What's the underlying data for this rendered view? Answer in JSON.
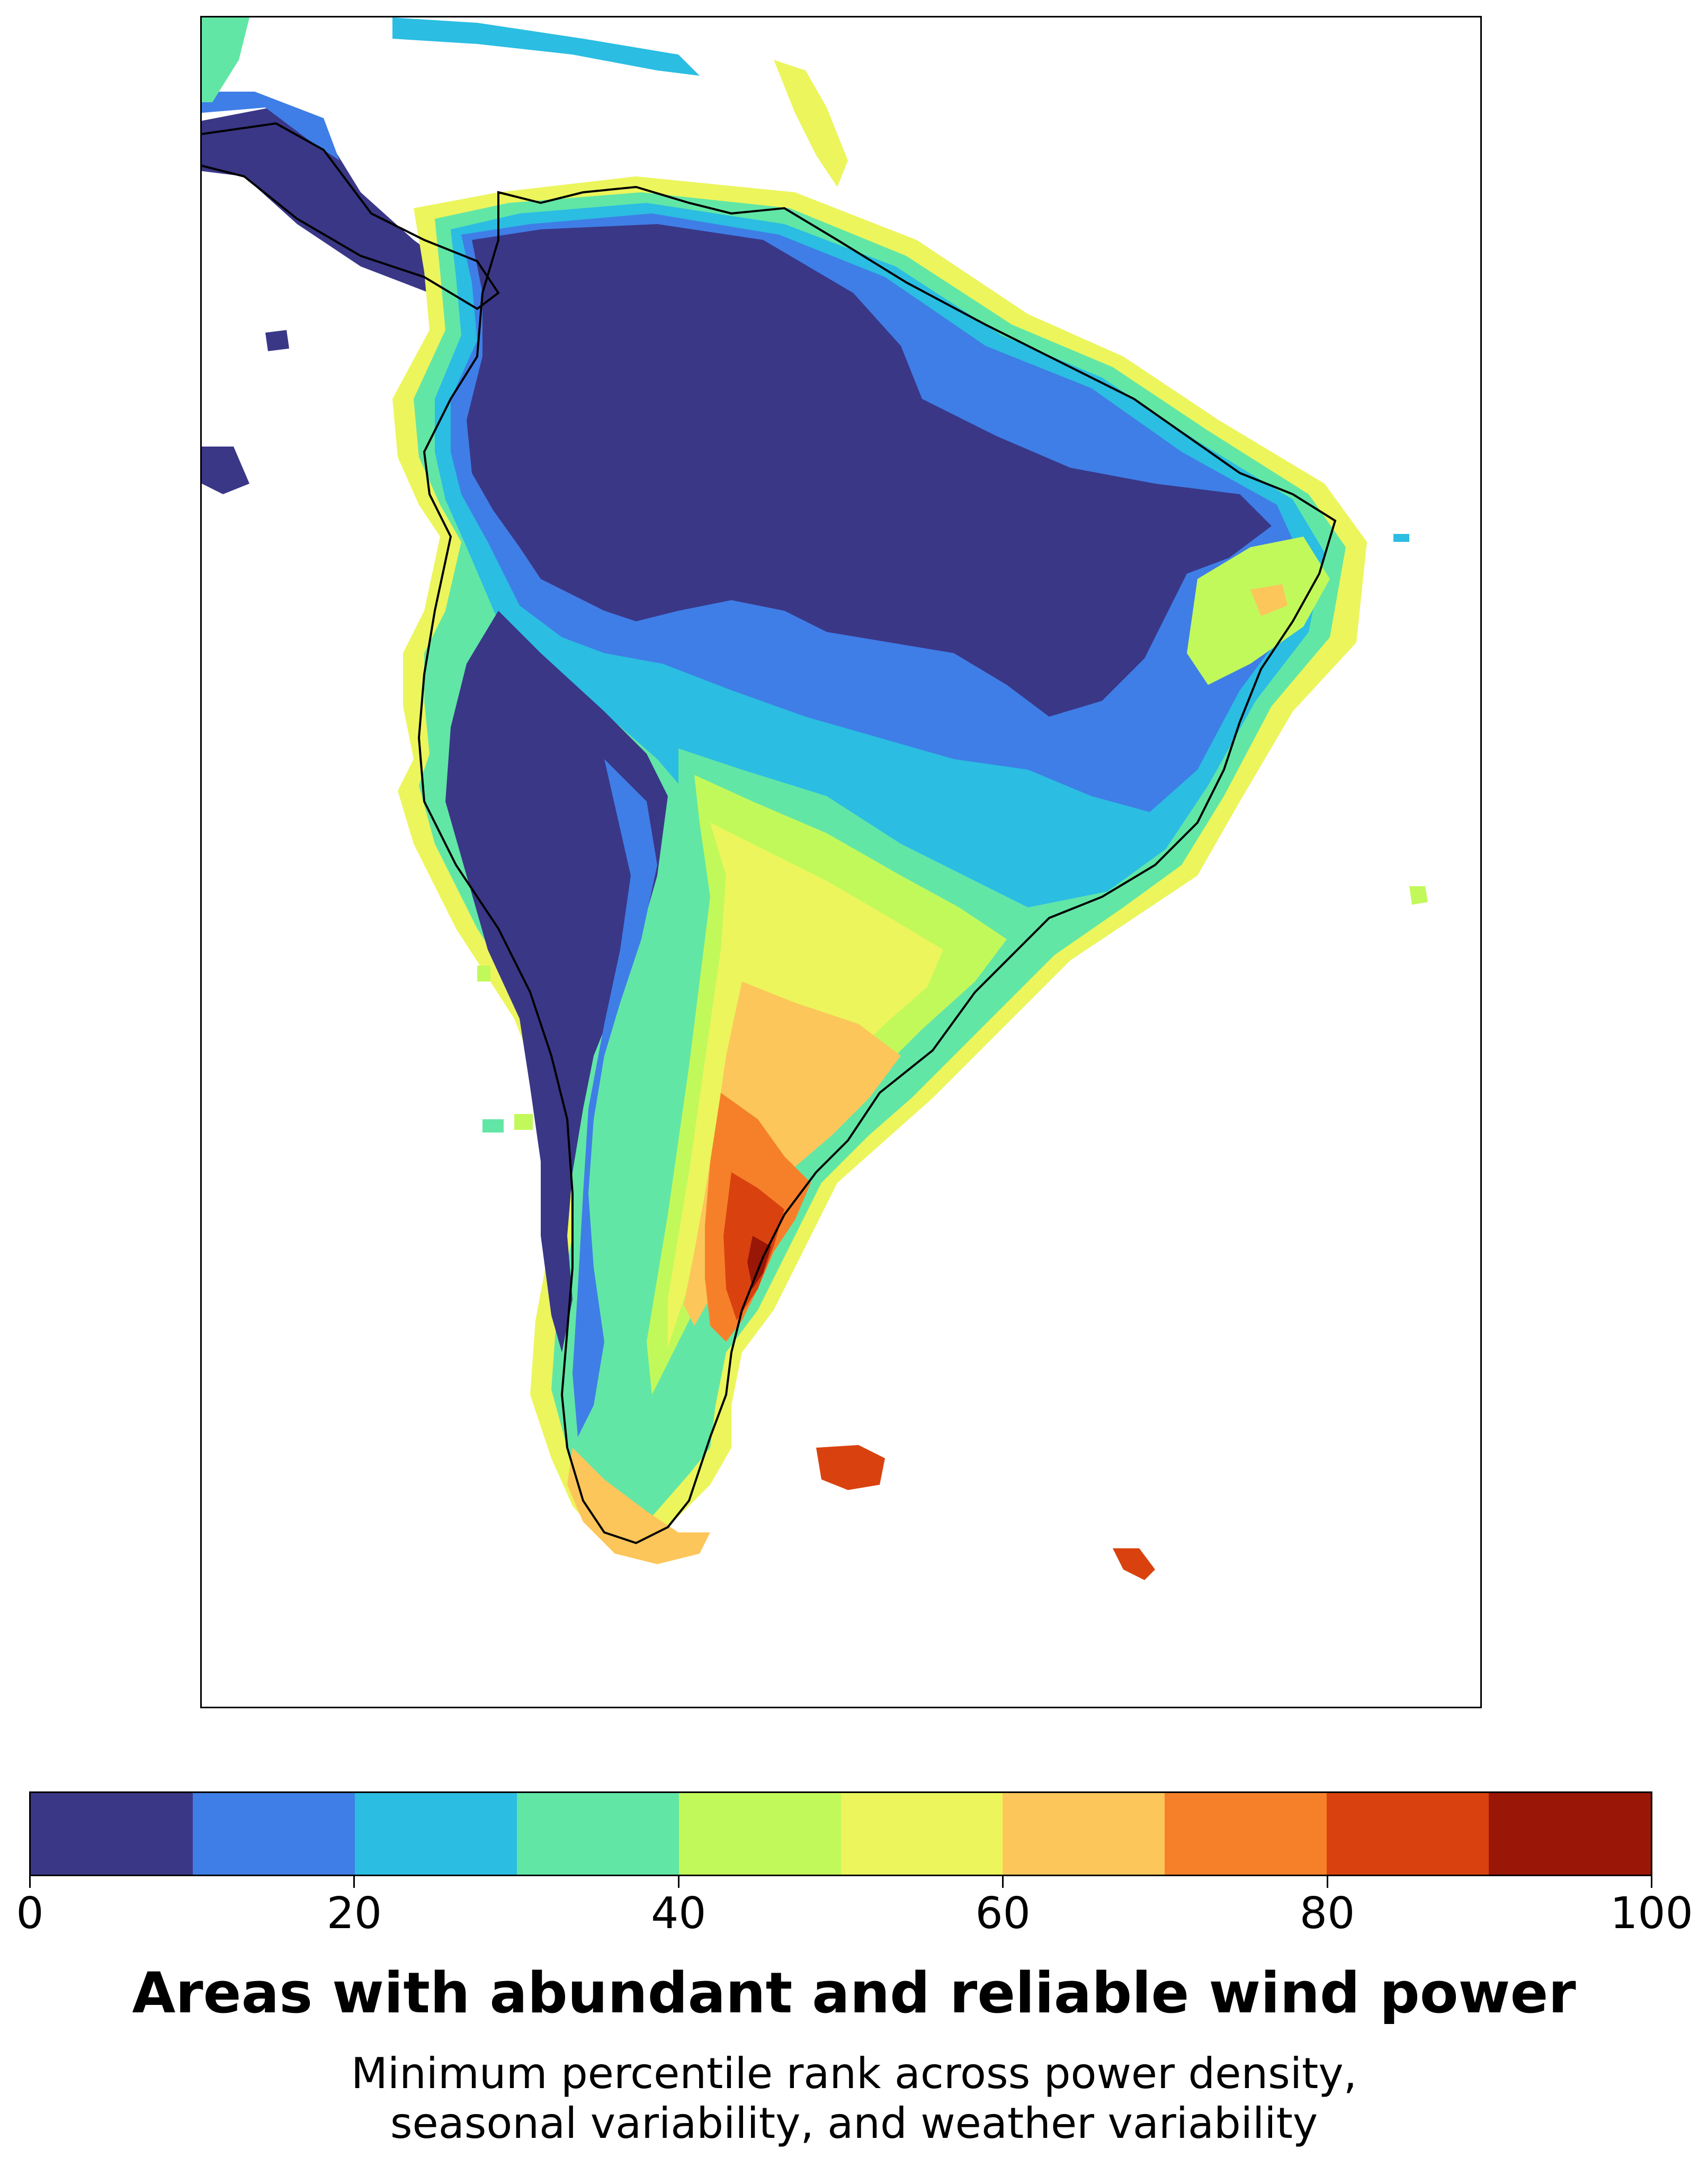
{
  "title": "Areas with abundant and reliable wind power",
  "subtitle": {
    "line1": "Minimum percentile rank across power density,",
    "line2": "seasonal variability, and weather variability"
  },
  "colorbar": {
    "ticks": [
      "0",
      "20",
      "40",
      "60",
      "80",
      "100"
    ],
    "bins": [
      {
        "from": 0,
        "to": 10,
        "color": "#3a3787"
      },
      {
        "from": 10,
        "to": 20,
        "color": "#3f7ee6"
      },
      {
        "from": 20,
        "to": 30,
        "color": "#2bbde2"
      },
      {
        "from": 30,
        "to": 40,
        "color": "#62e6a6"
      },
      {
        "from": 40,
        "to": 50,
        "color": "#c2f95a"
      },
      {
        "from": 50,
        "to": 60,
        "color": "#ecf55c"
      },
      {
        "from": 60,
        "to": 70,
        "color": "#fcc65a"
      },
      {
        "from": 70,
        "to": 80,
        "color": "#f6802a"
      },
      {
        "from": 80,
        "to": 90,
        "color": "#d9420e"
      },
      {
        "from": 90,
        "to": 100,
        "color": "#9a1607"
      }
    ]
  },
  "map": {
    "region": "South America",
    "colors": {
      "outline": "#000000",
      "background": "#ffffff"
    }
  }
}
